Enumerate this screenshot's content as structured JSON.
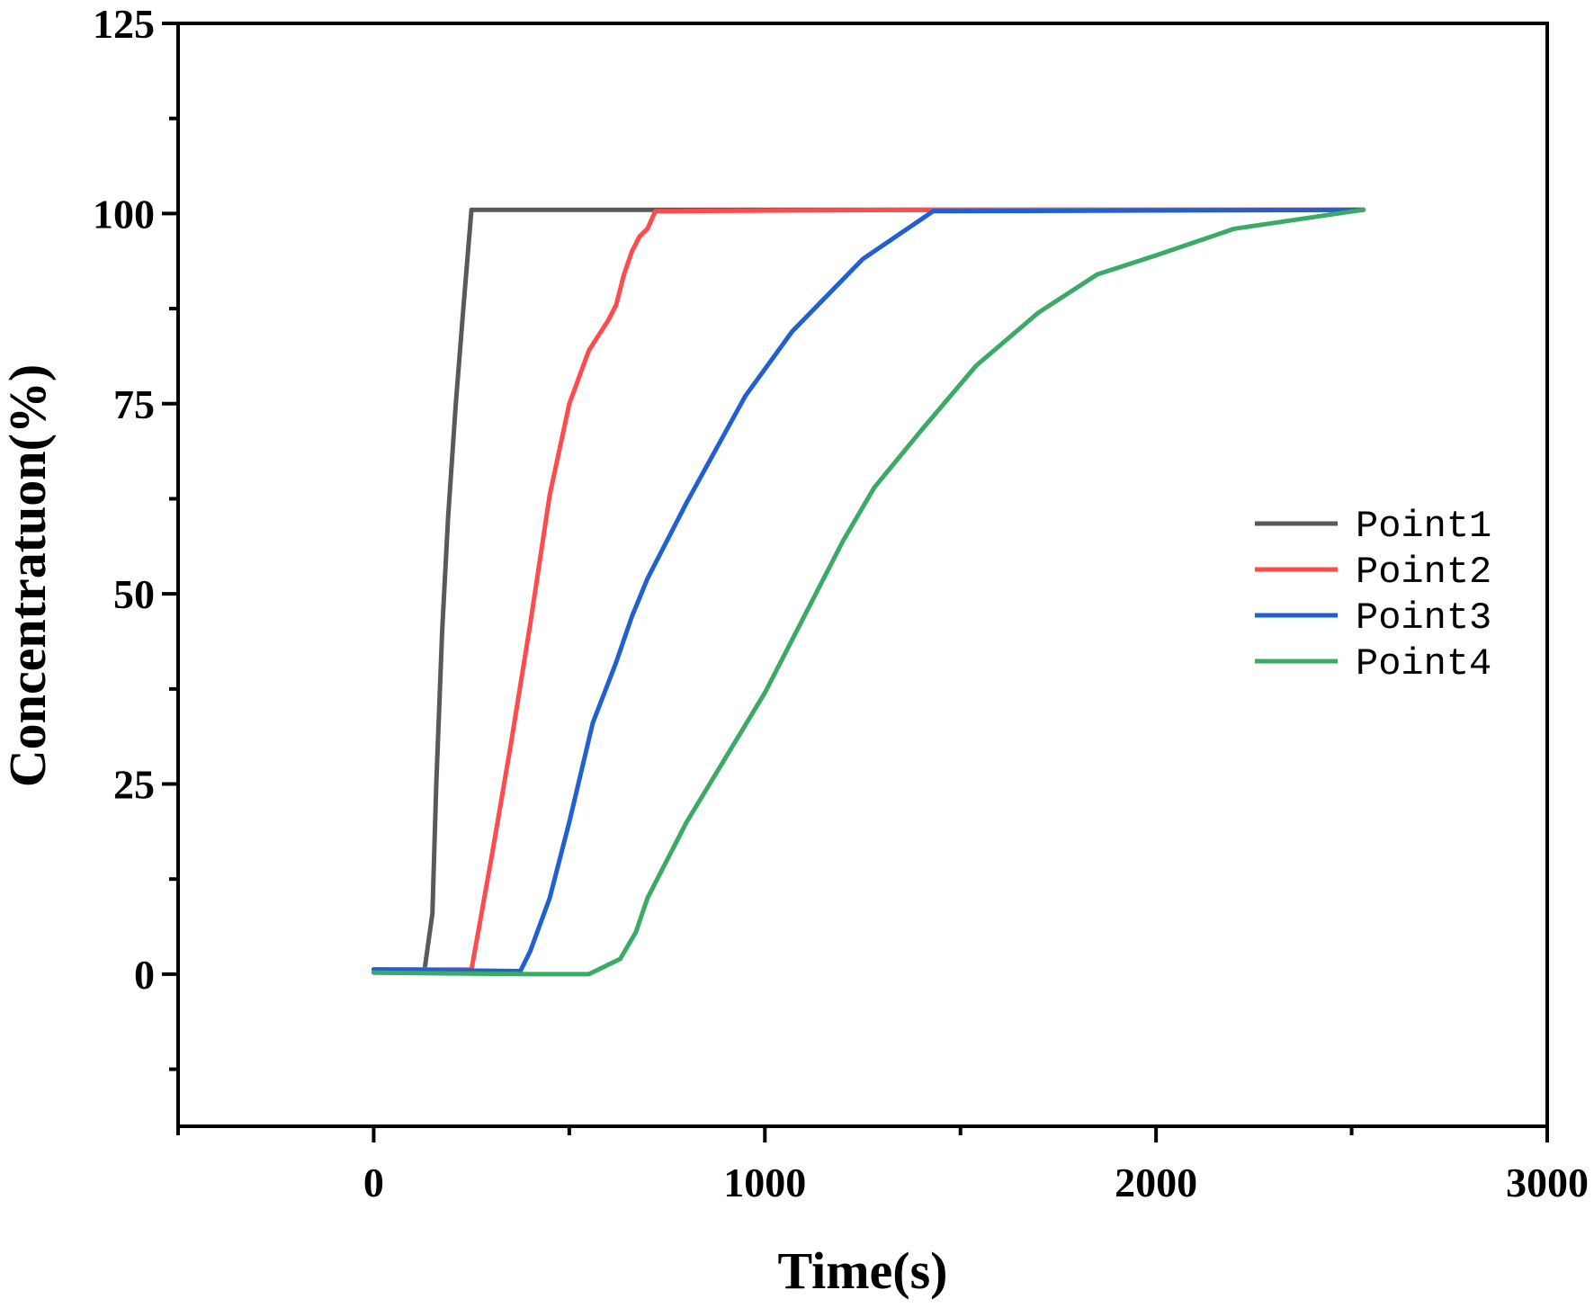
{
  "chart_data": {
    "type": "line",
    "title": "",
    "xlabel": "Time(s)",
    "ylabel": "Concentratuon(%)",
    "xlim": [
      -500,
      3000
    ],
    "ylim": [
      -20,
      125
    ],
    "x_ticks": [
      0,
      1000,
      2000,
      3000
    ],
    "x_tick_labels": [
      "0",
      "1000",
      "2000",
      "3000"
    ],
    "y_ticks": [
      0,
      25,
      50,
      75,
      100,
      125
    ],
    "y_tick_labels": [
      "0",
      "25",
      "50",
      "75",
      "100",
      "125"
    ],
    "grid": false,
    "legend_position": "right",
    "series": [
      {
        "name": "Point1",
        "color": "#595959",
        "x": [
          0,
          60,
          130,
          150,
          160,
          175,
          190,
          210,
          230,
          250,
          2530
        ],
        "y": [
          0.6,
          0.6,
          0.6,
          8,
          25,
          45,
          60,
          75,
          88,
          100.5,
          100.5
        ]
      },
      {
        "name": "Point2",
        "color": "#ff4b4b",
        "x": [
          0,
          100,
          250,
          300,
          350,
          400,
          450,
          500,
          550,
          600,
          620,
          640,
          660,
          680,
          700,
          720,
          1400,
          2530
        ],
        "y": [
          0.6,
          0.6,
          0.6,
          15,
          30,
          46,
          63,
          75,
          82,
          86,
          88,
          92,
          95,
          97,
          98,
          100.3,
          100.5,
          100.5
        ]
      },
      {
        "name": "Point3",
        "color": "#2060d0",
        "x": [
          0,
          200,
          375,
          400,
          450,
          500,
          560,
          620,
          660,
          700,
          800,
          950,
          1070,
          1250,
          1430,
          2530
        ],
        "y": [
          0.6,
          0.5,
          0.4,
          3,
          10,
          20,
          33,
          41,
          47,
          52,
          62,
          76,
          84.5,
          94,
          100.3,
          100.5
        ]
      },
      {
        "name": "Point4",
        "color": "#3aaa66",
        "x": [
          0,
          200,
          400,
          550,
          630,
          670,
          700,
          800,
          1000,
          1200,
          1280,
          1400,
          1540,
          1700,
          1850,
          2000,
          2200,
          2530
        ],
        "y": [
          0.2,
          0.1,
          0.0,
          0.0,
          2,
          5.5,
          10,
          20,
          37,
          57,
          64,
          71.5,
          80,
          87,
          92,
          94.5,
          98,
          100.5
        ]
      }
    ]
  }
}
